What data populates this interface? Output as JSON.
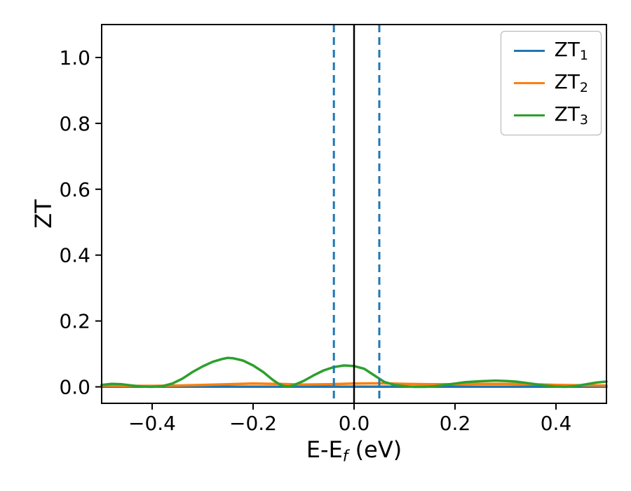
{
  "chart_data": {
    "type": "line",
    "title": "",
    "ylabel": "ZT",
    "xlabel_parts": {
      "prefix": "E-E",
      "sub": "f",
      "suffix": " (eV)"
    },
    "xlim": [
      -0.5,
      0.5
    ],
    "ylim": [
      -0.05,
      1.1
    ],
    "xticks": {
      "values": [
        -0.4,
        -0.2,
        0.0,
        0.2,
        0.4
      ],
      "labels": [
        "−0.4",
        "−0.2",
        "0.0",
        "0.2",
        "0.4"
      ]
    },
    "yticks": {
      "values": [
        0.0,
        0.2,
        0.4,
        0.6,
        0.8,
        1.0
      ],
      "labels": [
        "0.0",
        "0.2",
        "0.4",
        "0.6",
        "0.8",
        "1.0"
      ]
    },
    "grid": false,
    "legend_position": "upper right",
    "vlines": [
      {
        "x": 0.0,
        "color": "#000000",
        "style": "solid",
        "width": 2.5
      },
      {
        "x": -0.04,
        "color": "#1f77b4",
        "style": "dashed",
        "width": 3
      },
      {
        "x": 0.05,
        "color": "#1f77b4",
        "style": "dashed",
        "width": 3
      }
    ],
    "series": [
      {
        "name": "ZT1",
        "label_main": "ZT",
        "label_sub": "1",
        "color": "#1f77b4",
        "x": [
          -0.5,
          -0.4,
          -0.3,
          -0.2,
          -0.1,
          0.0,
          0.1,
          0.2,
          0.3,
          0.4,
          0.5
        ],
        "y": [
          0.0005,
          0.0005,
          0.0005,
          0.0005,
          0.0005,
          0.0005,
          0.0005,
          0.0005,
          0.0005,
          0.0005,
          0.0005
        ]
      },
      {
        "name": "ZT2",
        "label_main": "ZT",
        "label_sub": "2",
        "color": "#ff7f0e",
        "x": [
          -0.5,
          -0.45,
          -0.4,
          -0.35,
          -0.3,
          -0.25,
          -0.2,
          -0.15,
          -0.1,
          -0.05,
          0.0,
          0.05,
          0.1,
          0.15,
          0.2,
          0.25,
          0.3,
          0.35,
          0.4,
          0.45,
          0.5
        ],
        "y": [
          0.004,
          0.003,
          0.003,
          0.004,
          0.006,
          0.008,
          0.01,
          0.009,
          0.007,
          0.008,
          0.01,
          0.011,
          0.009,
          0.008,
          0.008,
          0.009,
          0.009,
          0.008,
          0.006,
          0.005,
          0.004
        ]
      },
      {
        "name": "ZT3",
        "label_main": "ZT",
        "label_sub": "3",
        "color": "#2ca02c",
        "x": [
          -0.5,
          -0.48,
          -0.46,
          -0.44,
          -0.42,
          -0.4,
          -0.38,
          -0.36,
          -0.34,
          -0.32,
          -0.3,
          -0.28,
          -0.26,
          -0.25,
          -0.24,
          -0.22,
          -0.2,
          -0.18,
          -0.16,
          -0.15,
          -0.14,
          -0.13,
          -0.12,
          -0.1,
          -0.08,
          -0.06,
          -0.04,
          -0.02,
          0.0,
          0.02,
          0.03,
          0.04,
          0.05,
          0.06,
          0.08,
          0.1,
          0.12,
          0.14,
          0.16,
          0.18,
          0.2,
          0.22,
          0.25,
          0.28,
          0.3,
          0.32,
          0.34,
          0.36,
          0.38,
          0.4,
          0.42,
          0.44,
          0.46,
          0.48,
          0.5
        ],
        "y": [
          0.006,
          0.009,
          0.008,
          0.004,
          0.001,
          0.0,
          0.002,
          0.01,
          0.025,
          0.045,
          0.062,
          0.076,
          0.085,
          0.088,
          0.087,
          0.08,
          0.065,
          0.045,
          0.02,
          0.01,
          0.003,
          0.001,
          0.005,
          0.018,
          0.035,
          0.05,
          0.06,
          0.065,
          0.063,
          0.055,
          0.045,
          0.035,
          0.025,
          0.015,
          0.006,
          0.002,
          0.0,
          0.0,
          0.002,
          0.006,
          0.01,
          0.014,
          0.017,
          0.019,
          0.018,
          0.016,
          0.012,
          0.008,
          0.004,
          0.001,
          0.0,
          0.003,
          0.008,
          0.013,
          0.016
        ]
      }
    ]
  }
}
